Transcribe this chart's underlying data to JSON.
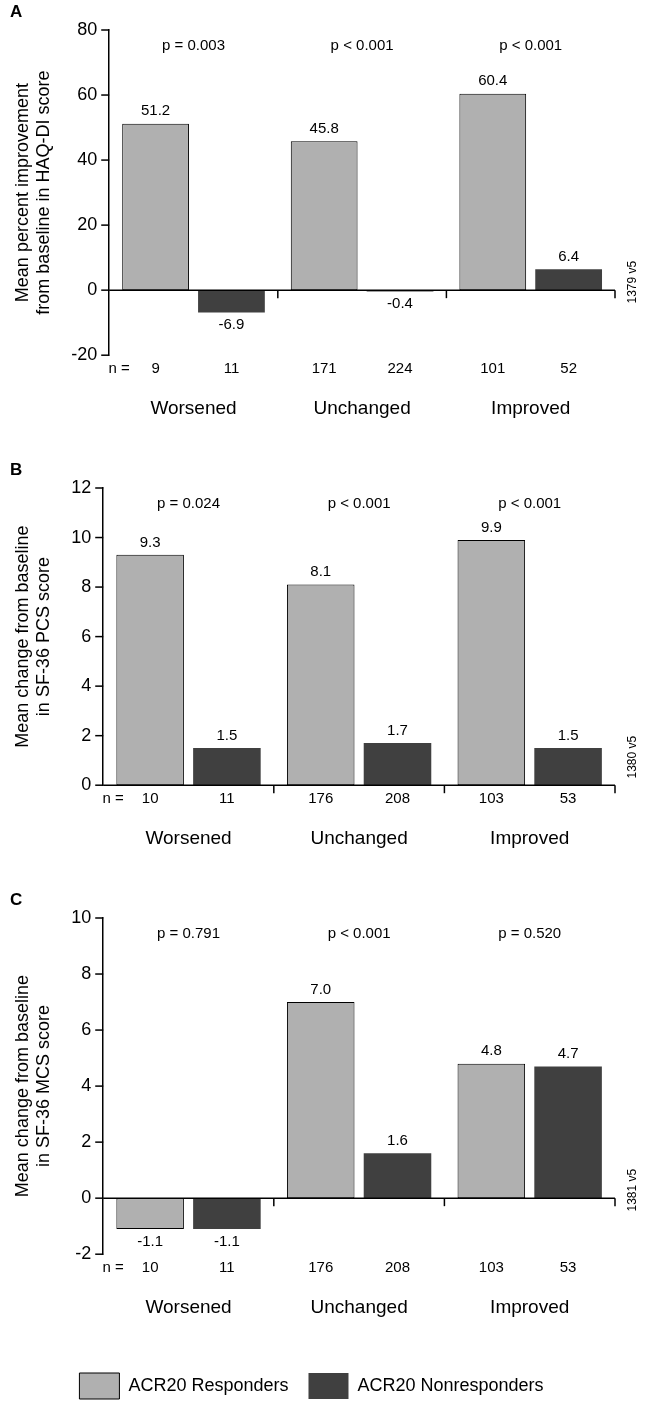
{
  "chart_data": [
    {
      "type": "bar",
      "categories": [
        "Worsened",
        "Unchanged",
        "Improved"
      ],
      "ylabel": "Mean percent improvement from baseline in HAQ-DI score",
      "ylim": [
        -20,
        80
      ],
      "yticks": [
        -20,
        0,
        20,
        40,
        60,
        80
      ],
      "grid": false,
      "legend": false,
      "data_labels": true,
      "series": [
        {
          "color": "#b0b0b0",
          "values": [
            51.2,
            45.8,
            60.4
          ]
        },
        {
          "color": "#404040",
          "values": [
            -6.9,
            -0.4,
            6.4
          ]
        }
      ],
      "ref_lines": [
        {
          "axis": "y",
          "value": 0,
          "color": "#000000"
        }
      ],
      "annotations": [
        "A",
        "p = 0.003",
        "p < 0.001",
        "p < 0.001",
        "n =",
        "9",
        "11",
        "171",
        "224",
        "101",
        "52",
        "1379 v5"
      ]
    },
    {
      "type": "bar",
      "categories": [
        "Worsened",
        "Unchanged",
        "Improved"
      ],
      "ylabel": "Mean change from baseline in SF-36 PCS score",
      "ylim": [
        0,
        12
      ],
      "yticks": [
        0,
        2,
        4,
        6,
        8,
        10,
        12
      ],
      "grid": false,
      "legend": false,
      "data_labels": true,
      "series": [
        {
          "color": "#b0b0b0",
          "values": [
            9.3,
            8.1,
            9.9
          ]
        },
        {
          "color": "#404040",
          "values": [
            1.5,
            1.7,
            1.5
          ]
        }
      ],
      "annotations": [
        "B",
        "p = 0.024",
        "p < 0.001",
        "p < 0.001",
        "n =",
        "10",
        "11",
        "176",
        "208",
        "103",
        "53",
        "1380 v5"
      ]
    },
    {
      "type": "bar",
      "categories": [
        "Worsened",
        "Unchanged",
        "Improved"
      ],
      "ylabel": "Mean change from baseline in SF-36 MCS score",
      "ylim": [
        -2,
        10
      ],
      "yticks": [
        -2,
        0,
        2,
        4,
        6,
        8,
        10
      ],
      "grid": false,
      "legend": "bottom",
      "data_labels": true,
      "series": [
        {
          "name": "ACR20 Responders",
          "color": "#b0b0b0",
          "values": [
            -1.1,
            7.0,
            4.8
          ],
          "value_labels": [
            "-1.1",
            "7.0",
            "4.8"
          ]
        },
        {
          "name": "ACR20 Nonresponders",
          "color": "#404040",
          "values": [
            -1.1,
            1.6,
            4.7
          ]
        }
      ],
      "ref_lines": [
        {
          "axis": "y",
          "value": 0,
          "color": "#000000"
        }
      ],
      "annotations": [
        "C",
        "p = 0.791",
        "p < 0.001",
        "p = 0.520",
        "n =",
        "10",
        "11",
        "176",
        "208",
        "103",
        "53",
        "1381 v5"
      ]
    }
  ]
}
